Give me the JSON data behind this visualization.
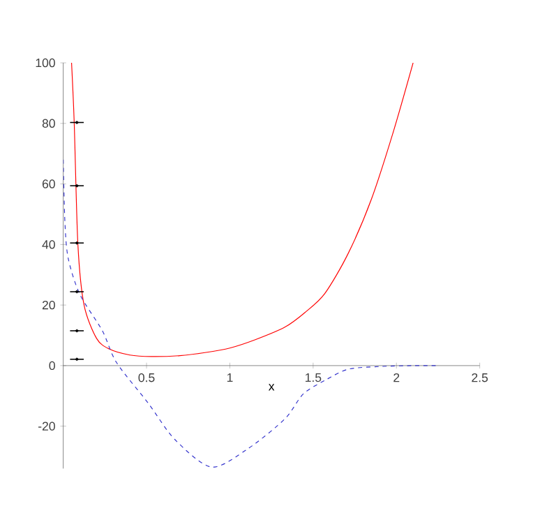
{
  "chart_data": {
    "type": "line",
    "xlabel": "x",
    "xlim": [
      0,
      2.5
    ],
    "ylim": [
      -34,
      100
    ],
    "xticks": [
      0.5,
      1,
      1.5,
      2,
      2.5
    ],
    "yticks": [
      -20,
      0,
      20,
      40,
      60,
      80,
      100
    ],
    "grid": false,
    "series": [
      {
        "color": "#ff0000",
        "line_style": "solid",
        "x": [
          0.05,
          0.066,
          0.088,
          0.125,
          0.2,
          0.276,
          0.4,
          0.53,
          0.7,
          0.85,
          1.0,
          1.15,
          1.33,
          1.45,
          1.57,
          1.71,
          1.85,
          1.98,
          2.1
        ],
        "values": [
          100,
          80,
          40,
          20,
          9,
          5.5,
          3.5,
          3,
          3.3,
          4.3,
          5.8,
          8.5,
          12.7,
          17.5,
          23.8,
          37,
          55,
          77,
          100
        ]
      },
      {
        "color": "#3333cc",
        "line_style": "dashed",
        "x": [
          0,
          0.01,
          0.03,
          0.1,
          0.235,
          0.32,
          0.51,
          0.67,
          0.89,
          1.11,
          1.33,
          1.44,
          1.57,
          1.71,
          1.9,
          2.1,
          2.25
        ],
        "values": [
          68,
          47.5,
          35.4,
          23.5,
          11.5,
          1,
          -12.4,
          -24.4,
          -33.5,
          -27.4,
          -17.6,
          -9.4,
          -4.9,
          -1.2,
          -0.3,
          0,
          0
        ]
      },
      {
        "type": "scatter",
        "color": "#000000",
        "marker": "circle",
        "x": [
          0.082,
          0.082,
          0.082,
          0.082,
          0.082,
          0.082
        ],
        "values": [
          80.3,
          59.4,
          40.5,
          24.4,
          11.5,
          2.1
        ],
        "xerrors": [
          0.041,
          0.041,
          0.041,
          0.041,
          0.041,
          0.041
        ]
      }
    ]
  }
}
